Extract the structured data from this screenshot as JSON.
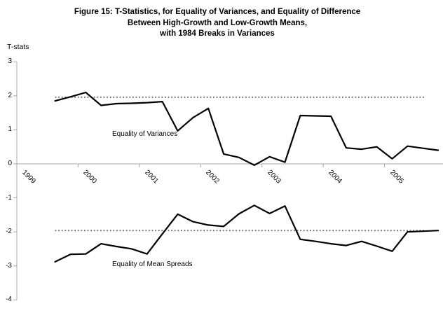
{
  "title": {
    "line1": "Figure 15: T-Statistics, for Equality of Variances, and Equality of Difference",
    "line2": "Between High-Growth and Low-Growth Means,",
    "line3": "with 1984 Breaks in Variances"
  },
  "y_axis_title": "T-stats",
  "annotations": {
    "upper_series_label": "Equality of Variances",
    "lower_series_label": "Equality of Mean Spreads"
  },
  "colors": {
    "series_line": "#000000",
    "axis": "#a8a8a8",
    "reference_dotted": "#666666",
    "text": "#000000",
    "background": "#ffffff"
  },
  "chart_data": {
    "type": "line",
    "title": "Figure 15: T-Statistics, for Equality of Variances, and Equality of Difference Between High-Growth and Low-Growth Means, with 1984 Breaks in Variances",
    "xlabel": "",
    "ylabel": "T-stats",
    "ylim": [
      -4,
      3
    ],
    "y_ticks": [
      3,
      2,
      1,
      0,
      -1,
      -2,
      -3,
      -4
    ],
    "x_tick_labels": [
      "1999",
      "2000",
      "2001",
      "2002",
      "2003",
      "2004",
      "2005"
    ],
    "points_per_year": 4,
    "first_point": "1999-Q3",
    "grid": false,
    "legend_position": "inline-annotations",
    "reference_lines": [
      {
        "value": 1.96,
        "style": "dotted"
      },
      {
        "value": -1.96,
        "style": "dotted"
      }
    ],
    "series": [
      {
        "name": "Equality of Variances",
        "values": [
          1.85,
          1.97,
          2.1,
          1.72,
          1.77,
          1.78,
          1.8,
          1.83,
          0.97,
          1.36,
          1.63,
          0.29,
          0.19,
          -0.04,
          0.21,
          0.05,
          1.42,
          1.41,
          1.4,
          0.47,
          0.43,
          0.5,
          0.15,
          0.52,
          0.46,
          0.4
        ]
      },
      {
        "name": "Equality of Mean Spreads",
        "values": [
          -2.88,
          -2.66,
          -2.65,
          -2.35,
          -2.43,
          -2.5,
          -2.65,
          -2.06,
          -1.48,
          -1.7,
          -1.8,
          -1.84,
          -1.47,
          -1.22,
          -1.46,
          -1.24,
          -2.22,
          -2.28,
          -2.35,
          -2.4,
          -2.28,
          -2.42,
          -2.57,
          -2.0,
          -1.98,
          -1.96
        ]
      }
    ]
  }
}
